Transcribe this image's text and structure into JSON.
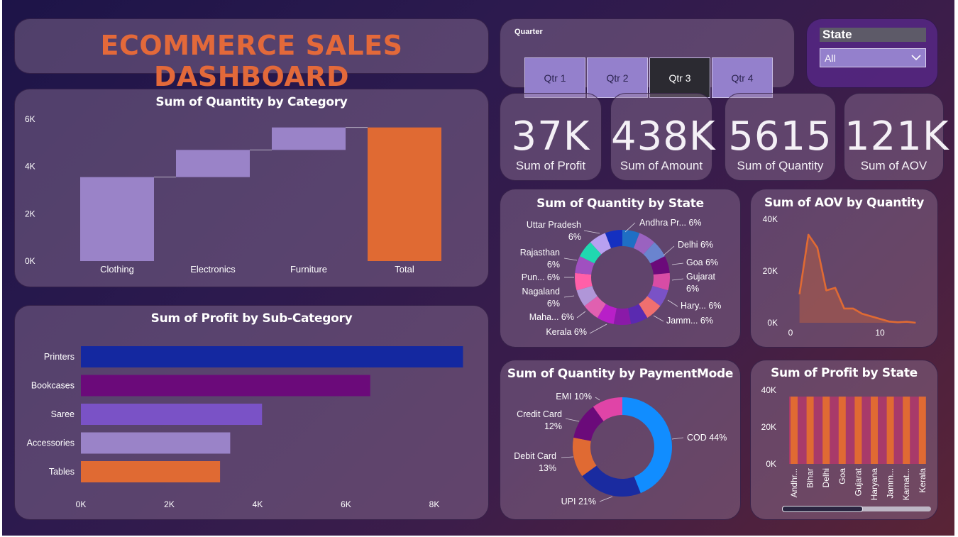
{
  "title": "ECOMMERCE SALES DASHBOARD",
  "slicers": {
    "quarter": {
      "label": "Quarter",
      "options": [
        "Qtr 1",
        "Qtr 2",
        "Qtr 3",
        "Qtr 4"
      ],
      "selected": "Qtr 3"
    },
    "state": {
      "label": "State",
      "value": "All"
    }
  },
  "kpis": [
    {
      "value": "37K",
      "label": "Sum of Profit"
    },
    {
      "value": "438K",
      "label": "Sum of Amount"
    },
    {
      "value": "5615",
      "label": "Sum of Quantity"
    },
    {
      "value": "121K",
      "label": "Sum of AOV"
    }
  ],
  "colors": {
    "accent_orange": "#e06a33",
    "lavender": "#9a83c8",
    "navy": "#1428a0",
    "purple": "#6b0a7a",
    "violet": "#7a52c6"
  },
  "chart_data": [
    {
      "id": "qty_by_category",
      "type": "waterfall",
      "title": "Sum of Quantity by Category",
      "categories": [
        "Clothing",
        "Electronics",
        "Furniture",
        "Total"
      ],
      "values": [
        3550,
        1150,
        950,
        5650
      ],
      "ylim": [
        0,
        6000
      ],
      "yticks": [
        "0K",
        "2K",
        "4K",
        "6K"
      ],
      "colors": [
        "#9a83c8",
        "#9a83c8",
        "#9a83c8",
        "#e06a33"
      ]
    },
    {
      "id": "profit_by_subcategory",
      "type": "bar",
      "orientation": "horizontal",
      "title": "Sum of Profit by Sub-Category",
      "categories": [
        "Printers",
        "Bookcases",
        "Saree",
        "Accessories",
        "Tables"
      ],
      "values": [
        8650,
        6550,
        4100,
        3380,
        3150
      ],
      "xlim": [
        0,
        9000
      ],
      "xticks": [
        "0K",
        "2K",
        "4K",
        "6K",
        "8K"
      ],
      "colors": [
        "#1428a0",
        "#6b0a7a",
        "#7a52c6",
        "#9a83c8",
        "#e06a33"
      ]
    },
    {
      "id": "qty_by_state",
      "type": "pie",
      "title": "Sum of Quantity by State",
      "slices": [
        {
          "label": "Andhra Pr... 6%",
          "value": 6,
          "color": "#1f6fc4"
        },
        {
          "label": "",
          "value": 6,
          "color": "#9a62c0"
        },
        {
          "label": "Delhi 6%",
          "value": 6,
          "color": "#6a84cf"
        },
        {
          "label": "Goa 6%",
          "value": 6,
          "color": "#6b0a7a"
        },
        {
          "label": "Gujarat 6%",
          "value": 6,
          "color": "#d84ca5"
        },
        {
          "label": "Hary... 6%",
          "value": 6,
          "color": "#7a52c6"
        },
        {
          "label": "Jamm... 6%",
          "value": 6,
          "color": "#f06f6f"
        },
        {
          "label": "",
          "value": 6,
          "color": "#5a2ab0"
        },
        {
          "label": "",
          "value": 6,
          "color": "#8a1aa8"
        },
        {
          "label": "Kerala 6%",
          "value": 6,
          "color": "#b81fc8"
        },
        {
          "label": "Maha... 6%",
          "value": 6,
          "color": "#e060b0"
        },
        {
          "label": "Nagaland 6%",
          "value": 6,
          "color": "#b096d8"
        },
        {
          "label": "Pun... 6%",
          "value": 6,
          "color": "#ff5fa8"
        },
        {
          "label": "Rajasthan 6%",
          "value": 6,
          "color": "#a050c0"
        },
        {
          "label": "",
          "value": 6,
          "color": "#20d8b0"
        },
        {
          "label": "Uttar Pradesh 6%",
          "value": 6,
          "color": "#b8a0f0"
        },
        {
          "label": "",
          "value": 6,
          "color": "#1430c0"
        }
      ]
    },
    {
      "id": "aov_by_quantity",
      "type": "area",
      "title": "Sum of AOV by Quantity",
      "x": [
        1,
        2,
        3,
        4,
        5,
        6,
        7,
        8,
        9,
        10,
        11,
        12,
        13,
        14
      ],
      "y": [
        11000,
        34000,
        29000,
        12500,
        13500,
        5500,
        5500,
        3500,
        2500,
        1500,
        500,
        200,
        400,
        0
      ],
      "xlim": [
        0,
        14.5
      ],
      "ylim": [
        0,
        40000
      ],
      "yticks": [
        "0K",
        "20K",
        "40K"
      ],
      "xticks": [
        "0",
        "10"
      ],
      "color": "#e06a33"
    },
    {
      "id": "qty_by_paymentmode",
      "type": "pie",
      "title": "Sum of Quantity by PaymentMode",
      "slices": [
        {
          "label": "COD 44%",
          "value": 44,
          "color": "#118dff"
        },
        {
          "label": "UPI 21%",
          "value": 21,
          "color": "#1a2ba0"
        },
        {
          "label": "Debit Card 13%",
          "value": 13,
          "color": "#e06a33"
        },
        {
          "label": "Credit Card 12%",
          "value": 12,
          "color": "#6b0a7a"
        },
        {
          "label": "EMI 10%",
          "value": 10,
          "color": "#e044a7"
        }
      ]
    },
    {
      "id": "profit_by_state",
      "type": "bar",
      "title": "Sum of Profit by State",
      "categories": [
        "Andhr...",
        "Bihar",
        "Delhi",
        "Goa",
        "Gujarat",
        "Haryana",
        "Jamm...",
        "Karnat...",
        "Kerala"
      ],
      "values": [
        36500,
        36500,
        36500,
        36500,
        36500,
        36500,
        36500,
        36500,
        36500
      ],
      "ylim": [
        0,
        40000
      ],
      "yticks": [
        "0K",
        "20K",
        "40K"
      ],
      "color": "#e06a33"
    }
  ]
}
